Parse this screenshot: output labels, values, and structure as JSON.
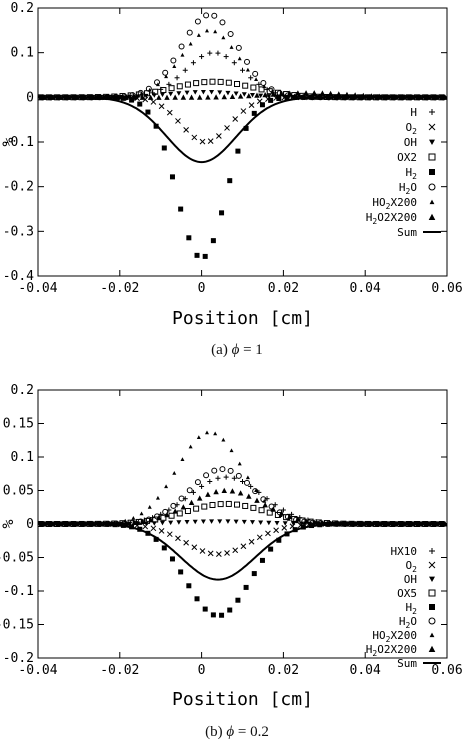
{
  "captions": [
    {
      "label": "(a)",
      "symbol": "ϕ",
      "relation": "= 1"
    },
    {
      "label": "(b)",
      "symbol": "ϕ",
      "relation": "= 0.2"
    }
  ],
  "chart_data": [
    {
      "type": "scatter",
      "title": "",
      "xlabel": "Position [cm]",
      "ylabel": "%",
      "xlim": [
        -0.04,
        0.06
      ],
      "ylim": [
        -0.4,
        0.2
      ],
      "xticks": [
        "-0.04",
        "-0.02",
        "0",
        "0.02",
        "0.04",
        "0.06"
      ],
      "yticks": [
        "-0.4",
        "-0.3",
        "-0.2",
        "-0.1",
        "0",
        "0.1",
        "0.2"
      ],
      "grid": false,
      "legend": "right",
      "series": [
        {
          "name": "H",
          "sub": "",
          "suffix": "",
          "marker": "plus",
          "amp": 0.1,
          "mu": 0.003,
          "sigma": 0.007
        },
        {
          "name": "O",
          "sub": "2",
          "suffix": "",
          "marker": "cross",
          "amp": -0.1,
          "mu": 0.001,
          "sigma": 0.006
        },
        {
          "name": "OH",
          "sub": "",
          "suffix": "",
          "marker": "tridown",
          "amp": 0.012,
          "mu": 0.001,
          "sigma": 0.009
        },
        {
          "name": "O",
          "sub": "",
          "suffix": "X2",
          "marker": "square",
          "amp": 0.035,
          "mu": 0.003,
          "sigma": 0.01
        },
        {
          "name": "H",
          "sub": "2",
          "suffix": "",
          "marker": "fsquare",
          "amp": -0.36,
          "mu": 0.0,
          "sigma": 0.006
        },
        {
          "name": "H",
          "sub": "2",
          "suffix": "O",
          "marker": "circle",
          "amp": 0.185,
          "mu": 0.002,
          "sigma": 0.007
        },
        {
          "name": "HO",
          "sub": "2",
          "suffix": "X200",
          "marker": "tri",
          "amp": 0.15,
          "mu": 0.002,
          "sigma": 0.007
        },
        {
          "name": "H",
          "sub": "2",
          "suffix": "O2X200",
          "marker": "ftri",
          "amp": 0.01,
          "mu": 0.026,
          "sigma": 0.01
        },
        {
          "name": "Sum",
          "sub": "",
          "suffix": "",
          "marker": "line",
          "amp": -0.145,
          "mu": 0.0,
          "sigma": 0.0085
        }
      ]
    },
    {
      "type": "scatter",
      "title": "",
      "xlabel": "Position [cm]",
      "ylabel": "%",
      "xlim": [
        -0.04,
        0.06
      ],
      "ylim": [
        -0.2,
        0.2
      ],
      "xticks": [
        "-0.04",
        "-0.02",
        "0",
        "0.02",
        "0.04",
        "0.06"
      ],
      "yticks": [
        "-0.2",
        "-0.15",
        "-0.1",
        "-0.05",
        "0",
        "0.05",
        "0.1",
        "0.15",
        "0.2"
      ],
      "grid": false,
      "legend": "right",
      "series": [
        {
          "name": "HX10",
          "sub": "",
          "suffix": "",
          "marker": "plus",
          "amp": 0.07,
          "mu": 0.006,
          "sigma": 0.009
        },
        {
          "name": "O",
          "sub": "2",
          "suffix": "",
          "marker": "cross",
          "amp": -0.045,
          "mu": 0.004,
          "sigma": 0.008
        },
        {
          "name": "OH",
          "sub": "",
          "suffix": "",
          "marker": "tridown",
          "amp": 0.004,
          "mu": 0.004,
          "sigma": 0.01
        },
        {
          "name": "OX5",
          "sub": "",
          "suffix": "",
          "marker": "square",
          "amp": 0.03,
          "mu": 0.006,
          "sigma": 0.01
        },
        {
          "name": "H",
          "sub": "2",
          "suffix": "",
          "marker": "fsquare",
          "amp": -0.137,
          "mu": 0.004,
          "sigma": 0.008
        },
        {
          "name": "H",
          "sub": "2",
          "suffix": "O",
          "marker": "circle",
          "amp": 0.082,
          "mu": 0.005,
          "sigma": 0.008
        },
        {
          "name": "HO",
          "sub": "2",
          "suffix": "X200",
          "marker": "tri",
          "amp": 0.137,
          "mu": 0.002,
          "sigma": 0.008
        },
        {
          "name": "H",
          "sub": "2",
          "suffix": "O2X200",
          "marker": "ftri",
          "amp": 0.05,
          "mu": 0.006,
          "sigma": 0.009
        },
        {
          "name": "Sum",
          "sub": "",
          "suffix": "",
          "marker": "line",
          "amp": -0.083,
          "mu": 0.004,
          "sigma": 0.009
        }
      ]
    }
  ]
}
